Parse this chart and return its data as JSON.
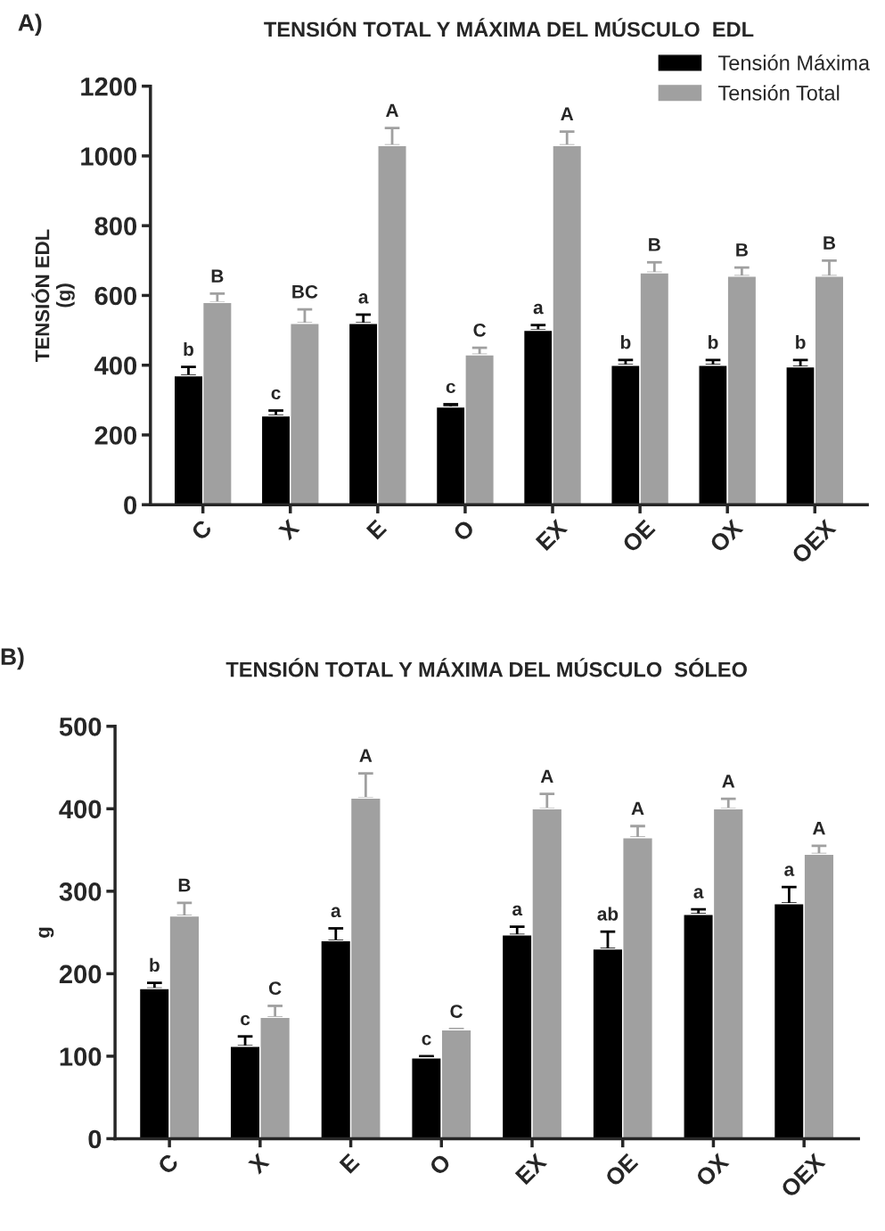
{
  "chart_data": [
    {
      "type": "bar",
      "title": "TENSIÓN TOTAL Y MÁXIMA DEL MÚSCULO  EDL",
      "ylabel": "TENSIÓN EDL\n(g)",
      "categories": [
        "C",
        "X",
        "E",
        "O",
        "EX",
        "OE",
        "OX",
        "OEX"
      ],
      "series": [
        {
          "name": "Tensión Máxima",
          "color": "#000000",
          "values": [
            370,
            255,
            520,
            280,
            500,
            400,
            400,
            395
          ],
          "errors": [
            [
              370,
              395
            ],
            [
              255,
              270
            ],
            [
              520,
              545
            ],
            [
              280,
              288
            ],
            [
              500,
              515
            ],
            [
              400,
              415
            ],
            [
              400,
              415
            ],
            [
              395,
              415
            ]
          ]
        },
        {
          "name": "Tensión Total",
          "color": "#a0a0a0",
          "values": [
            580,
            520,
            1030,
            430,
            1030,
            665,
            655,
            655
          ],
          "errors": [
            [
              580,
              605
            ],
            [
              520,
              560
            ],
            [
              1030,
              1080
            ],
            [
              430,
              450
            ],
            [
              1030,
              1070
            ],
            [
              665,
              695
            ],
            [
              655,
              680
            ],
            [
              655,
              700
            ]
          ]
        }
      ],
      "ylim": [
        0,
        1200
      ],
      "yticks": [
        0,
        200,
        400,
        600,
        800,
        1000,
        1200
      ],
      "legend": "top right",
      "grid": false,
      "annotations": [
        "A)",
        "b",
        "B",
        "c",
        "BC",
        "a",
        "A",
        "c",
        "C",
        "a",
        "A",
        "b",
        "B",
        "b",
        "B",
        "b",
        "B"
      ]
    },
    {
      "type": "bar",
      "title": "TENSIÓN TOTAL Y MÁXIMA DEL MÚSCULO  SÓLEO",
      "ylabel": "g",
      "categories": [
        "C",
        "X",
        "E",
        "O",
        "EX",
        "OE",
        "OX",
        "OEX"
      ],
      "series": [
        {
          "color": "#000000",
          "values": [
            182,
            112,
            240,
            98,
            247,
            230,
            272,
            285
          ],
          "errors": [
            [
              182,
              189
            ],
            [
              112,
              124
            ],
            [
              240,
              255
            ],
            [
              98,
              100
            ],
            [
              247,
              257
            ],
            [
              230,
              251
            ],
            [
              272,
              278
            ],
            [
              285,
              305
            ]
          ]
        },
        {
          "color": "#a0a0a0",
          "values": [
            270,
            147,
            413,
            132,
            400,
            365,
            400,
            345
          ],
          "errors": [
            [
              270,
              286
            ],
            [
              147,
              161
            ],
            [
              413,
              443
            ],
            [
              132,
              133
            ],
            [
              400,
              418
            ],
            [
              365,
              379
            ],
            [
              400,
              412
            ],
            [
              345,
              355
            ]
          ]
        }
      ],
      "ylim": [
        0,
        500
      ],
      "yticks": [
        0,
        100,
        200,
        300,
        400,
        500
      ],
      "legend": false,
      "grid": false,
      "annotations": [
        "B)",
        "b",
        "B",
        "c",
        "C",
        "a",
        "A",
        "c",
        "C",
        "a",
        "A",
        "ab",
        "A",
        "a",
        "A",
        "a",
        "A"
      ]
    }
  ]
}
